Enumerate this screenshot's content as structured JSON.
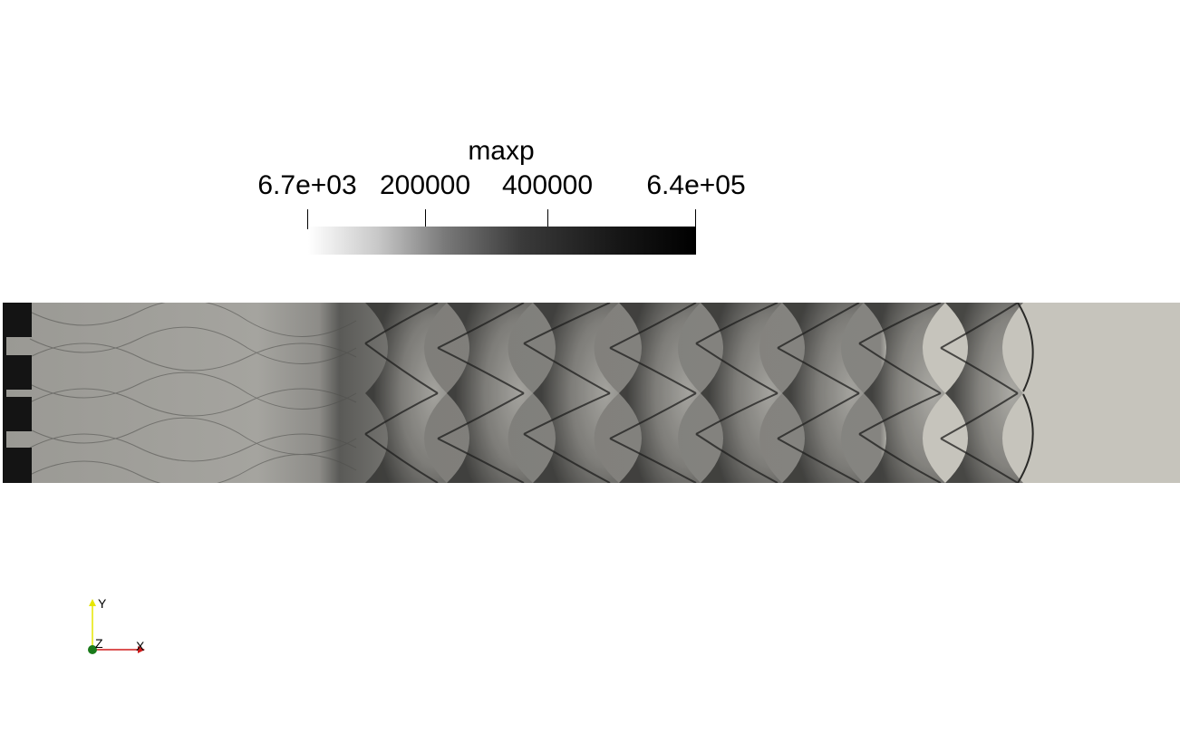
{
  "color_legend": {
    "title": "maxp",
    "colormap": "grayscale (white to black)",
    "range": [
      6700,
      640000
    ],
    "labels": {
      "min": "6.7e+03",
      "t1": "200000",
      "t2": "400000",
      "max": "6.4e+05"
    },
    "tick_values": [
      6700,
      200000,
      400000,
      640000
    ]
  },
  "render": {
    "background_color": "#ffffff",
    "unfilled_region_color": "#c6c4bc",
    "field_color": "#8a8985"
  },
  "orientation_axes": {
    "x_label": "X",
    "y_label": "Y",
    "z_label": "Z",
    "x_color": "#d01c1c",
    "y_color": "#e6e600",
    "z_color": "#1a7a1a"
  }
}
